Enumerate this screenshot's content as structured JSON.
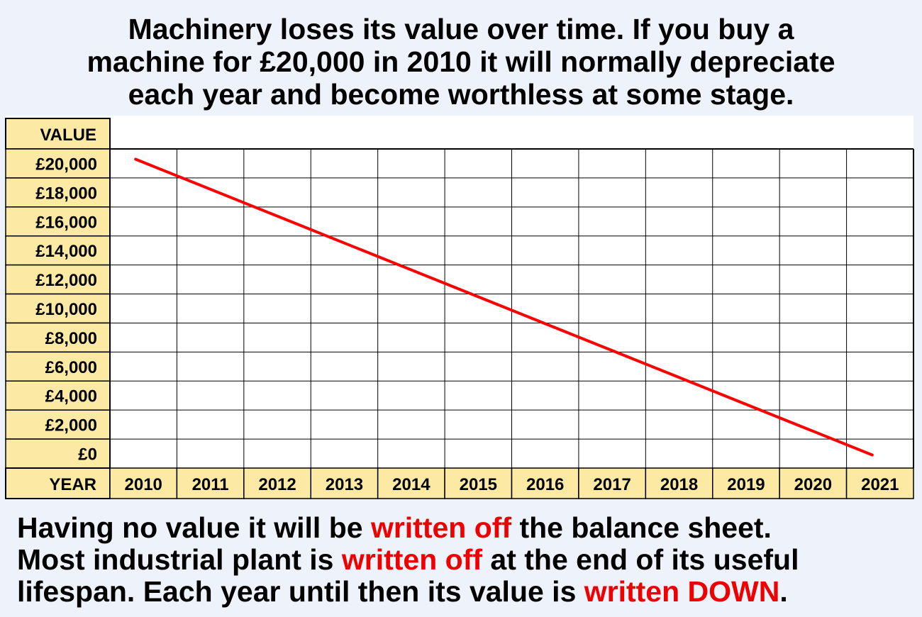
{
  "title_lines": [
    "Machinery loses its value over time. If you buy a",
    "machine for £20,000 in 2010 it will normally depreciate",
    "each year and become worthless at some stage."
  ],
  "chart_data": {
    "type": "line",
    "ylabel": "VALUE",
    "xlabel": "YEAR",
    "x_tick_labels": [
      "2010",
      "2011",
      "2012",
      "2013",
      "2014",
      "2015",
      "2016",
      "2017",
      "2018",
      "2019",
      "2020",
      "2021"
    ],
    "y_tick_labels": [
      "£20,000",
      "£18,000",
      "£16,000",
      "£14,000",
      "£12,000",
      "£10,000",
      "£8,000",
      "£6,000",
      "£4,000",
      "£2,000",
      "£0"
    ],
    "ylim": [
      0,
      20000
    ],
    "grid": true,
    "series": [
      {
        "x": [
          2010,
          2021
        ],
        "y": [
          20000,
          0
        ],
        "color": "#ff0000"
      }
    ],
    "colors": {
      "axis_fill": "#fce9a4",
      "grid": "#000000",
      "line": "#ff0000"
    }
  },
  "footer": {
    "line1": {
      "a": "Having no value it will be ",
      "b": "written off",
      "c": " the balance sheet."
    },
    "line2": {
      "a": "Most industrial plant is ",
      "b": "written off",
      "c": " at the end of its useful"
    },
    "line3": {
      "a": "lifespan. Each year until then its value is ",
      "b": "written DOWN",
      "c": "."
    }
  }
}
